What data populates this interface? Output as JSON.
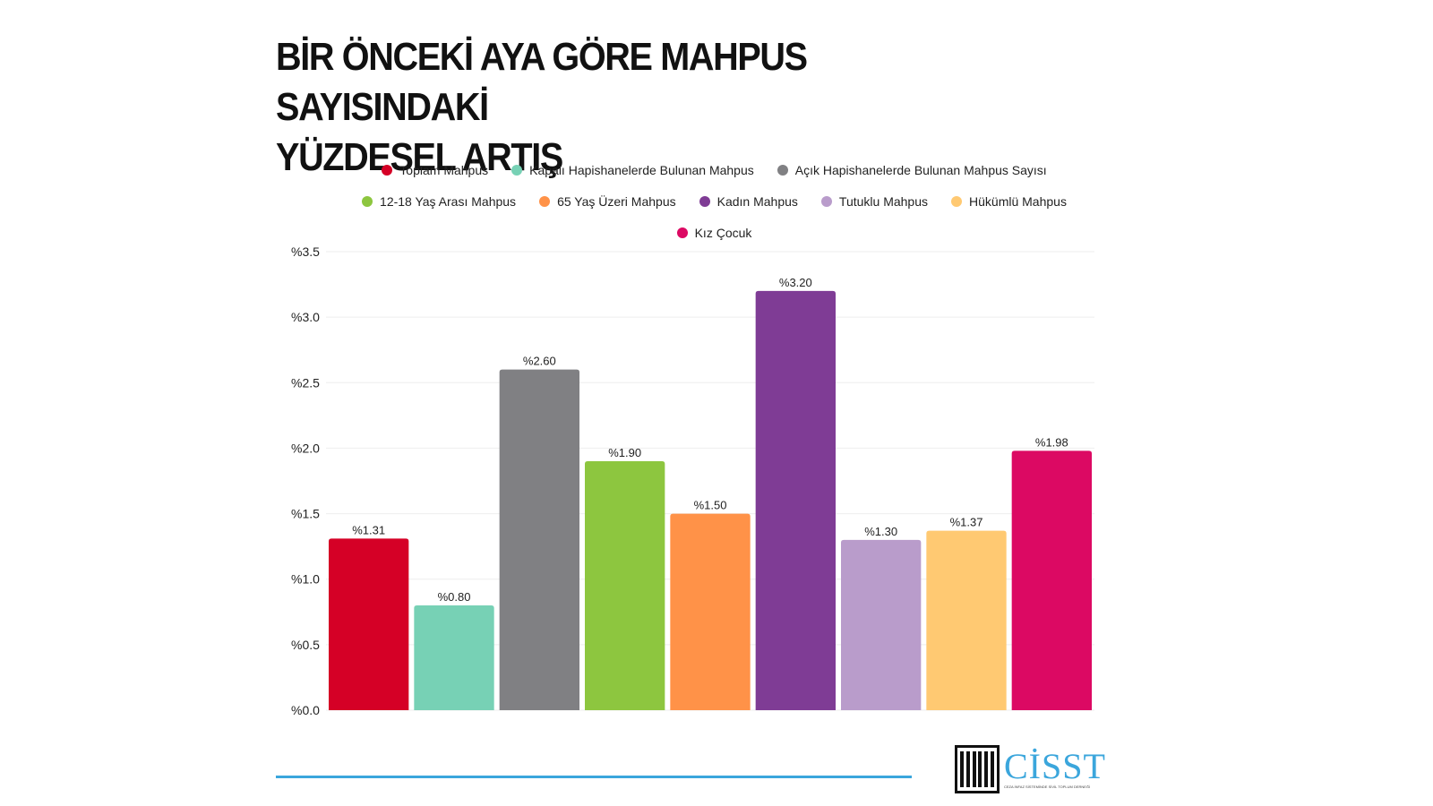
{
  "title": [
    "BİR ÖNCEKİ AYA GÖRE MAHPUS SAYISINDAKİ",
    "YÜZDESEL ARTIŞ"
  ],
  "logo": {
    "name": "CİSST",
    "subtitle": "CEZA İNFAZ SİSTEMİNDE SİVİL TOPLUM DERNEĞİ"
  },
  "colors": {
    "footer_line": "#3ba6dc",
    "logo_accent": "#3ba6dc"
  },
  "chart_data": {
    "type": "bar",
    "title": "BİR ÖNCEKİ AYA GÖRE MAHPUS SAYISINDAKİ YÜZDESEL ARTIŞ",
    "ylim": [
      0,
      3.5
    ],
    "yticks": [
      "%0.0",
      "%0.5",
      "%1.0",
      "%1.5",
      "%2.0",
      "%2.5",
      "%3.0",
      "%3.5"
    ],
    "ytick_values": [
      0,
      0.5,
      1.0,
      1.5,
      2.0,
      2.5,
      3.0,
      3.5
    ],
    "grid": true,
    "legend_position": "top-center",
    "series": [
      {
        "name": "Toplam Mahpus",
        "value": 1.31,
        "label": "%1.31",
        "color": "#d50026"
      },
      {
        "name": "Kapalı Hapishanelerde Bulunan Mahpus",
        "value": 0.8,
        "label": "%0.80",
        "color": "#77d1b5"
      },
      {
        "name": "Açık Hapishanelerde Bulunan Mahpus Sayısı",
        "value": 2.6,
        "label": "%2.60",
        "color": "#808083"
      },
      {
        "name": "12-18 Yaş Arası Mahpus",
        "value": 1.9,
        "label": "%1.90",
        "color": "#8dc63f"
      },
      {
        "name": "65 Yaş Üzeri Mahpus",
        "value": 1.5,
        "label": "%1.50",
        "color": "#ff9248"
      },
      {
        "name": "Kadın Mahpus",
        "value": 3.2,
        "label": "%3.20",
        "color": "#7f3c95"
      },
      {
        "name": "Tutuklu Mahpus",
        "value": 1.3,
        "label": "%1.30",
        "color": "#b99ccb"
      },
      {
        "name": "Hükümlü Mahpus",
        "value": 1.37,
        "label": "%1.37",
        "color": "#ffc972"
      },
      {
        "name": "Kız Çocuk",
        "value": 1.98,
        "label": "%1.98",
        "color": "#dc0963"
      }
    ],
    "legend_rows": [
      [
        0,
        1,
        2
      ],
      [
        3,
        4,
        5,
        6,
        7
      ],
      [
        8
      ]
    ]
  }
}
